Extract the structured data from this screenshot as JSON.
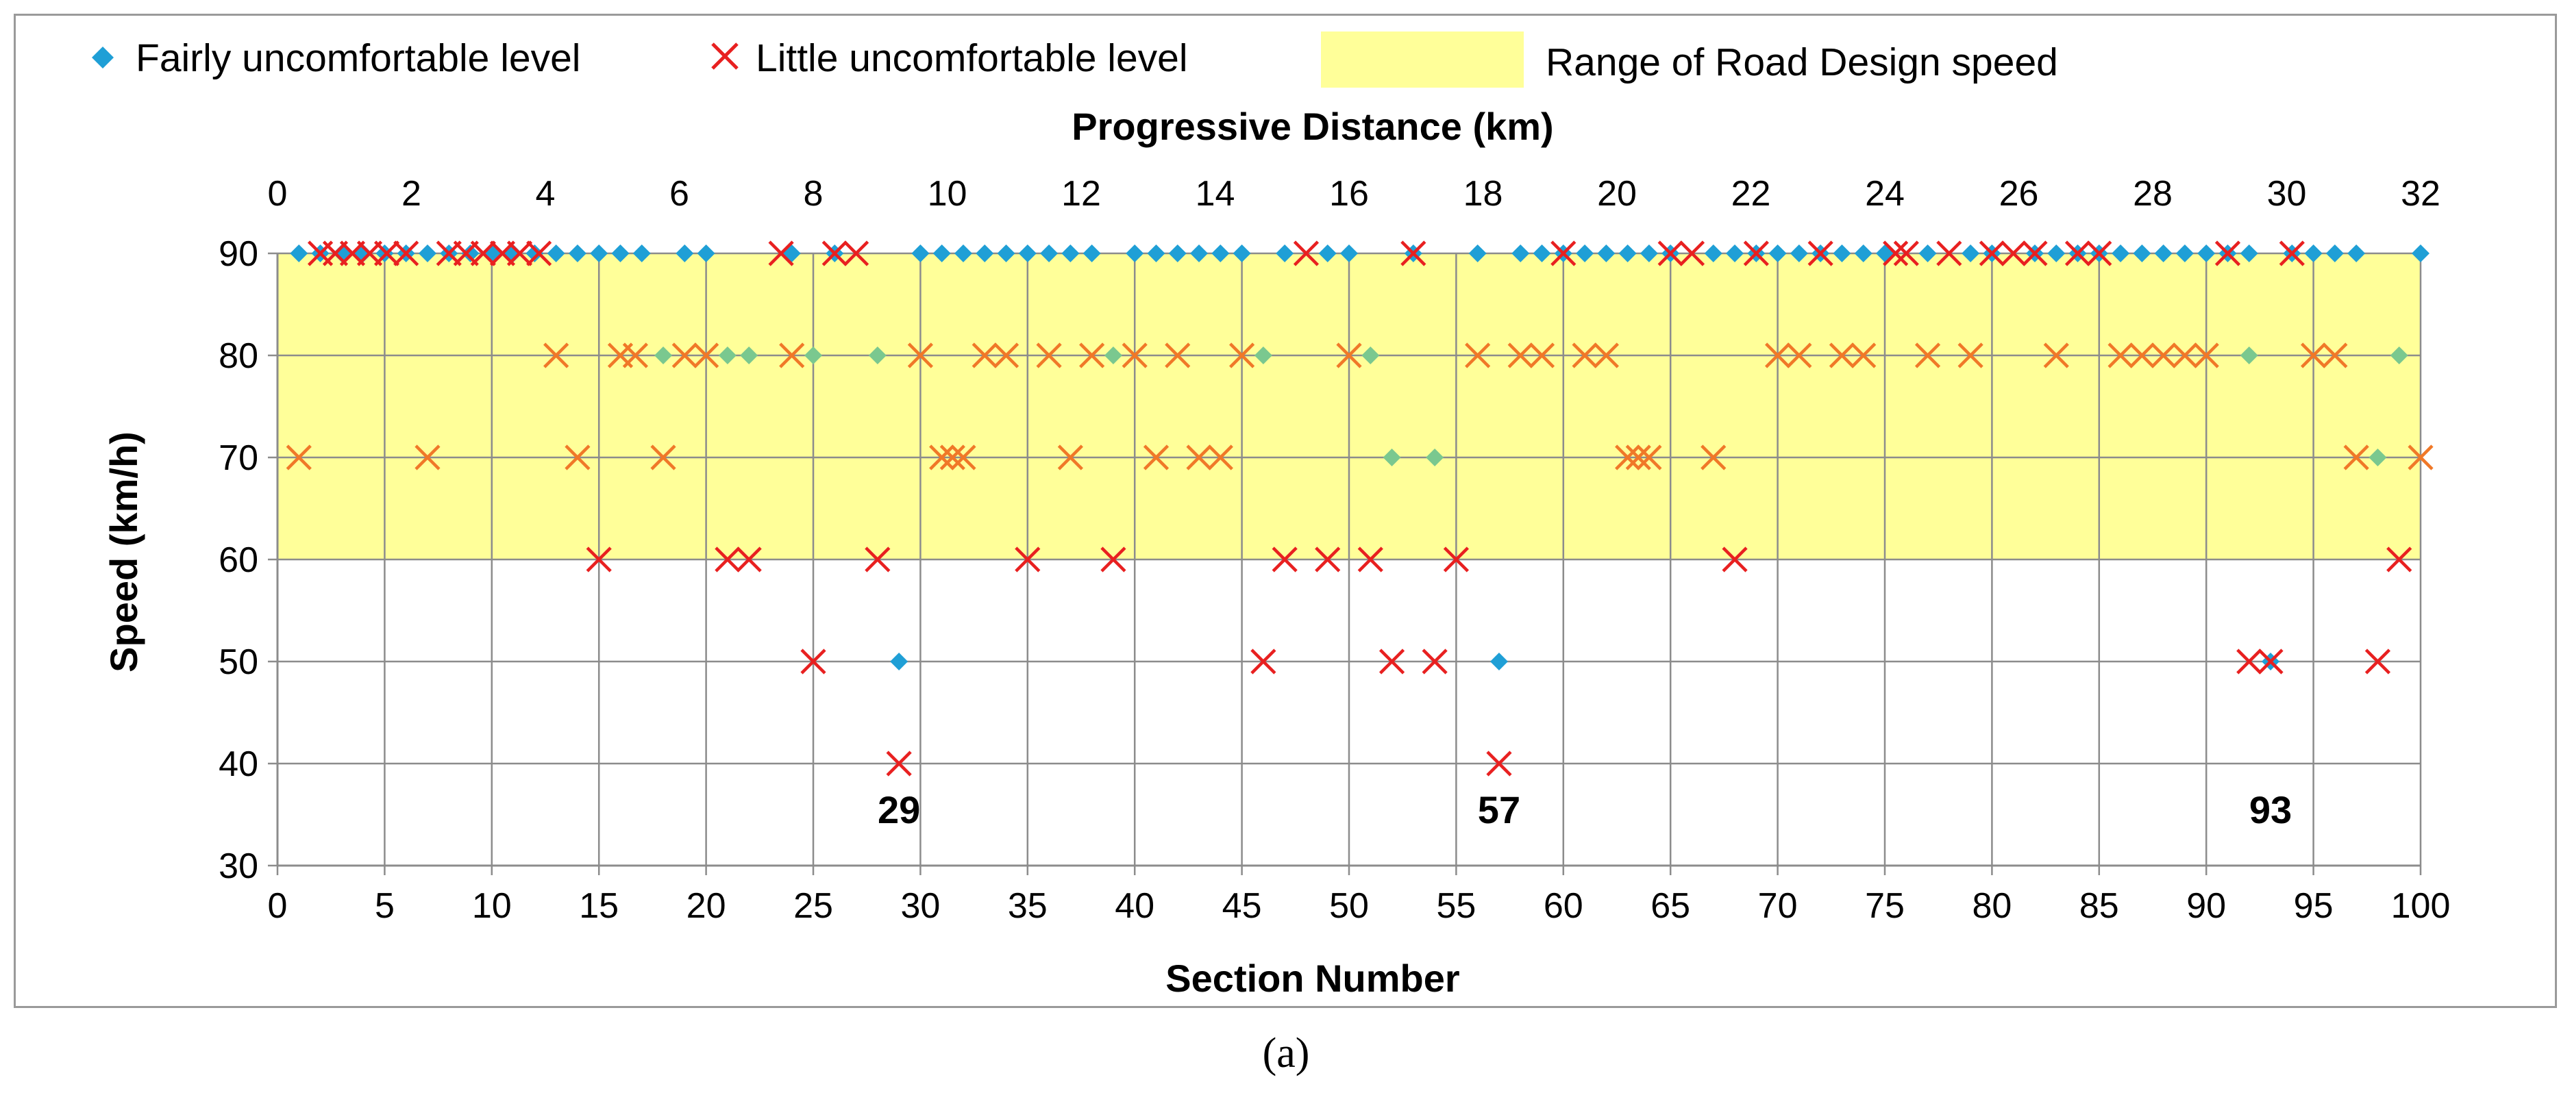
{
  "caption": "(a)",
  "chart_data": {
    "type": "scatter",
    "title": "",
    "xlabel": "Section Number",
    "x2label": "Progressive Distance (km)",
    "ylabel": "Speed (km/h)",
    "xlim": [
      0,
      100
    ],
    "x2lim": [
      0,
      32
    ],
    "ylim": [
      30,
      90
    ],
    "xticks": [
      0,
      5,
      10,
      15,
      20,
      25,
      30,
      35,
      40,
      45,
      50,
      55,
      60,
      65,
      70,
      75,
      80,
      85,
      90,
      95,
      100
    ],
    "x2ticks": [
      0,
      2,
      4,
      6,
      8,
      10,
      12,
      14,
      16,
      18,
      20,
      22,
      24,
      26,
      28,
      30,
      32
    ],
    "yticks": [
      30,
      40,
      50,
      60,
      70,
      80,
      90
    ],
    "grid": true,
    "legend_position": "top",
    "band": {
      "name": "Range of Road Design speed",
      "y_range": [
        60,
        90
      ],
      "color": "#ffff99"
    },
    "series": [
      {
        "name": "Fairly uncomfortable level",
        "marker": "diamond",
        "color": "#1f9fd6",
        "points": [
          [
            1,
            90
          ],
          [
            2,
            90
          ],
          [
            3,
            90
          ],
          [
            4,
            90
          ],
          [
            5,
            90
          ],
          [
            6,
            90
          ],
          [
            7,
            90
          ],
          [
            8,
            90
          ],
          [
            9,
            90
          ],
          [
            10,
            90
          ],
          [
            11,
            90
          ],
          [
            12,
            90
          ],
          [
            13,
            90
          ],
          [
            14,
            90
          ],
          [
            15,
            90
          ],
          [
            16,
            90
          ],
          [
            17,
            90
          ],
          [
            19,
            90
          ],
          [
            20,
            90
          ],
          [
            24,
            90
          ],
          [
            26,
            90
          ],
          [
            30,
            90
          ],
          [
            31,
            90
          ],
          [
            32,
            90
          ],
          [
            33,
            90
          ],
          [
            34,
            90
          ],
          [
            35,
            90
          ],
          [
            36,
            90
          ],
          [
            37,
            90
          ],
          [
            38,
            90
          ],
          [
            40,
            90
          ],
          [
            41,
            90
          ],
          [
            42,
            90
          ],
          [
            43,
            90
          ],
          [
            44,
            90
          ],
          [
            45,
            90
          ],
          [
            47,
            90
          ],
          [
            49,
            90
          ],
          [
            50,
            90
          ],
          [
            53,
            90
          ],
          [
            56,
            90
          ],
          [
            58,
            90
          ],
          [
            59,
            90
          ],
          [
            60,
            90
          ],
          [
            61,
            90
          ],
          [
            62,
            90
          ],
          [
            63,
            90
          ],
          [
            64,
            90
          ],
          [
            65,
            90
          ],
          [
            67,
            90
          ],
          [
            68,
            90
          ],
          [
            69,
            90
          ],
          [
            70,
            90
          ],
          [
            71,
            90
          ],
          [
            72,
            90
          ],
          [
            73,
            90
          ],
          [
            74,
            90
          ],
          [
            75,
            90
          ],
          [
            77,
            90
          ],
          [
            79,
            90
          ],
          [
            80,
            90
          ],
          [
            82,
            90
          ],
          [
            83,
            90
          ],
          [
            84,
            90
          ],
          [
            85,
            90
          ],
          [
            86,
            90
          ],
          [
            87,
            90
          ],
          [
            88,
            90
          ],
          [
            89,
            90
          ],
          [
            90,
            90
          ],
          [
            91,
            90
          ],
          [
            92,
            90
          ],
          [
            94,
            90
          ],
          [
            95,
            90
          ],
          [
            96,
            90
          ],
          [
            97,
            90
          ],
          [
            100,
            90
          ],
          [
            18,
            80
          ],
          [
            21,
            80
          ],
          [
            22,
            80
          ],
          [
            25,
            80
          ],
          [
            28,
            80
          ],
          [
            39,
            80
          ],
          [
            46,
            80
          ],
          [
            51,
            80
          ],
          [
            92,
            80
          ],
          [
            99,
            80
          ],
          [
            52,
            70
          ],
          [
            54,
            70
          ],
          [
            98,
            70
          ],
          [
            29,
            50
          ],
          [
            57,
            50
          ],
          [
            93,
            50
          ]
        ]
      },
      {
        "name": "Little uncomfortable level",
        "marker": "cross",
        "color": "#e82020",
        "points": [
          [
            2,
            90
          ],
          [
            2.7,
            90
          ],
          [
            3.5,
            90
          ],
          [
            4.3,
            90
          ],
          [
            5.1,
            90
          ],
          [
            6,
            90
          ],
          [
            8,
            90
          ],
          [
            8.8,
            90
          ],
          [
            9.6,
            90
          ],
          [
            10.5,
            90
          ],
          [
            11.3,
            90
          ],
          [
            12.2,
            90
          ],
          [
            23.5,
            90
          ],
          [
            26,
            90
          ],
          [
            27,
            90
          ],
          [
            48,
            90
          ],
          [
            53,
            90
          ],
          [
            60,
            90
          ],
          [
            65,
            90
          ],
          [
            66,
            90
          ],
          [
            69,
            90
          ],
          [
            72,
            90
          ],
          [
            75.5,
            90
          ],
          [
            76,
            90
          ],
          [
            78,
            90
          ],
          [
            80,
            90
          ],
          [
            81,
            90
          ],
          [
            82,
            90
          ],
          [
            84,
            90
          ],
          [
            85,
            90
          ],
          [
            91,
            90
          ],
          [
            94,
            90
          ],
          [
            13,
            80
          ],
          [
            16,
            80
          ],
          [
            16.7,
            80
          ],
          [
            19,
            80
          ],
          [
            20,
            80
          ],
          [
            24,
            80
          ],
          [
            30,
            80
          ],
          [
            33,
            80
          ],
          [
            34,
            80
          ],
          [
            36,
            80
          ],
          [
            38,
            80
          ],
          [
            40,
            80
          ],
          [
            42,
            80
          ],
          [
            45,
            80
          ],
          [
            50,
            80
          ],
          [
            56,
            80
          ],
          [
            58,
            80
          ],
          [
            59,
            80
          ],
          [
            61,
            80
          ],
          [
            62,
            80
          ],
          [
            70,
            80
          ],
          [
            71,
            80
          ],
          [
            73,
            80
          ],
          [
            74,
            80
          ],
          [
            77,
            80
          ],
          [
            79,
            80
          ],
          [
            83,
            80
          ],
          [
            86,
            80
          ],
          [
            87,
            80
          ],
          [
            88,
            80
          ],
          [
            89,
            80
          ],
          [
            90,
            80
          ],
          [
            95,
            80
          ],
          [
            96,
            80
          ],
          [
            1,
            70
          ],
          [
            7,
            70
          ],
          [
            14,
            70
          ],
          [
            18,
            70
          ],
          [
            31,
            70
          ],
          [
            31.5,
            70
          ],
          [
            32,
            70
          ],
          [
            37,
            70
          ],
          [
            41,
            70
          ],
          [
            43,
            70
          ],
          [
            44,
            70
          ],
          [
            63,
            70
          ],
          [
            63.5,
            70
          ],
          [
            64,
            70
          ],
          [
            67,
            70
          ],
          [
            97,
            70
          ],
          [
            100,
            70
          ],
          [
            15,
            60
          ],
          [
            21,
            60
          ],
          [
            22,
            60
          ],
          [
            28,
            60
          ],
          [
            35,
            60
          ],
          [
            39,
            60
          ],
          [
            47,
            60
          ],
          [
            49,
            60
          ],
          [
            51,
            60
          ],
          [
            55,
            60
          ],
          [
            68,
            60
          ],
          [
            99,
            60
          ],
          [
            25,
            50
          ],
          [
            46,
            50
          ],
          [
            52,
            50
          ],
          [
            54,
            50
          ],
          [
            92,
            50
          ],
          [
            93,
            50
          ],
          [
            98,
            50
          ],
          [
            29,
            40
          ],
          [
            57,
            40
          ]
        ]
      }
    ],
    "annotations": [
      {
        "text": "29",
        "x": 29,
        "y": 35.5
      },
      {
        "text": "57",
        "x": 57,
        "y": 35.5
      },
      {
        "text": "93",
        "x": 93,
        "y": 35.5
      }
    ]
  }
}
